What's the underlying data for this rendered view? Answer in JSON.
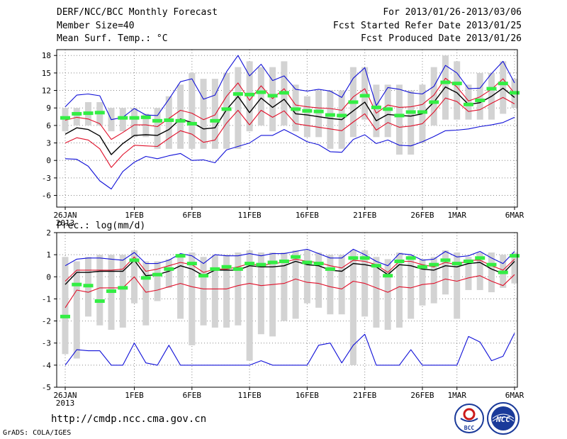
{
  "header": {
    "title": "DERF/NCC/BCC Monthly Forecast",
    "member_size": "Member Size=40",
    "variable_top": "Mean Surf. Temp.: °C",
    "forecast_period": "For 2013/01/26-2013/03/06",
    "refer_date": "Fcst Started Refer Date 2013/01/25",
    "produced_date": "Fcst Produced Date 2013/01/26"
  },
  "footer": {
    "url": "http://cmdp.ncc.cma.gov.cn",
    "credit": "GrADS: COLA/IGES",
    "logo_left_text": "BCC",
    "logo_right_text": "NCC"
  },
  "colors": {
    "bar": "#d3d3d3",
    "mean": "#000000",
    "spread": "#e0102a",
    "extreme": "#1010d8",
    "observed": "#33ee44",
    "grid": "#888888"
  },
  "chart_data": [
    {
      "type": "line",
      "title": "Mean Surf. Temp.: °C",
      "ylabel": "°C",
      "ylim": [
        -8,
        19
      ],
      "yticks": [
        -6,
        -3,
        0,
        3,
        6,
        9,
        12,
        15,
        18
      ],
      "ytick_labels": [
        "-6",
        "-3",
        "0",
        "3",
        "6",
        "9",
        "12",
        "15",
        "18"
      ],
      "xticks": [
        {
          "day": 0,
          "label": "26JAN",
          "sub": "2013"
        },
        {
          "day": 6,
          "label": "1FEB"
        },
        {
          "day": 11,
          "label": "6FEB"
        },
        {
          "day": 16,
          "label": "11FEB"
        },
        {
          "day": 21,
          "label": "16FEB"
        },
        {
          "day": 26,
          "label": "21FEB"
        },
        {
          "day": 31,
          "label": "26FEB"
        },
        {
          "day": 34,
          "label": "1MAR"
        },
        {
          "day": 39,
          "label": "6MAR"
        }
      ],
      "series": [
        {
          "name": "ensemble range",
          "kind": "bars",
          "low": [
            5,
            6,
            6,
            6,
            5,
            5,
            4,
            4,
            2,
            2,
            2,
            2,
            2,
            2,
            2,
            2,
            5,
            6,
            5,
            6,
            5,
            4,
            4,
            2,
            2,
            4,
            7,
            4,
            4,
            1,
            1,
            3,
            6,
            7,
            7,
            7,
            7,
            7,
            8,
            9
          ],
          "high": [
            9,
            9,
            10,
            10,
            9,
            9,
            9,
            8,
            9,
            11,
            13,
            15,
            14,
            14,
            15,
            16,
            17,
            16,
            16,
            17,
            13,
            11,
            12,
            12,
            12,
            16,
            16,
            13,
            13,
            13,
            12,
            13,
            16,
            18,
            17,
            13,
            15,
            15,
            17,
            14
          ]
        },
        {
          "name": "maximum",
          "kind": "line",
          "color": "extreme",
          "values": [
            9.2,
            11.2,
            11.4,
            11.1,
            7.0,
            7.4,
            8.9,
            7.8,
            7.7,
            10.5,
            13.5,
            14.0,
            10.5,
            11.2,
            15.2,
            18.0,
            14.5,
            16.5,
            13.7,
            14.5,
            12.2,
            11.9,
            12.2,
            11.9,
            10.8,
            14.1,
            15.9,
            9.4,
            12.5,
            12.2,
            11.6,
            11.4,
            12.7,
            16.3,
            15.0,
            12.3,
            12.4,
            14.9,
            17.0,
            13.3
          ]
        },
        {
          "name": "upper spread",
          "kind": "line",
          "color": "spread",
          "values": [
            6.9,
            7.4,
            7.1,
            6.3,
            3.6,
            4.8,
            6.1,
            6.1,
            5.8,
            7.2,
            8.6,
            8.1,
            7.0,
            7.8,
            11.0,
            13.3,
            10.3,
            12.8,
            10.6,
            12.3,
            9.5,
            9.2,
            9.0,
            8.9,
            8.6,
            10.9,
            12.3,
            8.1,
            9.5,
            9.1,
            9.2,
            9.6,
            11.2,
            14.1,
            12.6,
            10.2,
            10.9,
            12.2,
            14.0,
            11.5
          ]
        },
        {
          "name": "ensemble mean",
          "kind": "line",
          "color": "mean",
          "values": [
            4.5,
            5.6,
            5.3,
            4.2,
            1.0,
            2.9,
            4.3,
            4.4,
            4.3,
            5.3,
            7.1,
            6.5,
            5.4,
            5.6,
            8.7,
            11.0,
            8.2,
            10.7,
            9.1,
            10.5,
            8.0,
            7.8,
            7.5,
            7.2,
            7.0,
            8.5,
            10.0,
            6.8,
            7.9,
            7.7,
            7.6,
            8.0,
            10.0,
            12.6,
            11.6,
            9.6,
            9.9,
            11.0,
            12.4,
            10.8
          ]
        },
        {
          "name": "lower spread",
          "kind": "line",
          "color": "spread",
          "values": [
            3.0,
            3.9,
            3.5,
            2.0,
            -1.2,
            1.0,
            2.6,
            2.5,
            2.4,
            3.8,
            5.1,
            4.5,
            3.1,
            3.5,
            6.4,
            8.6,
            6.1,
            8.6,
            7.4,
            8.5,
            6.3,
            6.0,
            5.7,
            5.4,
            5.1,
            6.6,
            8.0,
            5.2,
            6.5,
            5.7,
            5.9,
            6.3,
            8.3,
            10.7,
            10.1,
            8.4,
            8.7,
            9.8,
            10.8,
            9.7
          ]
        },
        {
          "name": "minimum",
          "kind": "line",
          "color": "extreme",
          "values": [
            0.3,
            0.2,
            -1.0,
            -3.5,
            -4.9,
            -1.9,
            -0.3,
            0.7,
            0.3,
            0.8,
            1.2,
            0.0,
            0.1,
            -0.4,
            1.8,
            2.4,
            3.0,
            4.3,
            4.3,
            5.3,
            4.3,
            3.2,
            2.7,
            1.5,
            1.4,
            3.6,
            4.4,
            2.9,
            3.5,
            2.6,
            2.5,
            3.2,
            4.1,
            5.1,
            5.2,
            5.4,
            5.8,
            6.1,
            6.5,
            7.4
          ]
        },
        {
          "name": "observed",
          "kind": "marks",
          "color": "observed",
          "values": [
            7.3,
            8.0,
            8.1,
            8.2,
            null,
            7.3,
            7.3,
            7.4,
            6.8,
            6.9,
            6.8,
            6.3,
            null,
            6.8,
            8.8,
            11.4,
            11.3,
            11.7,
            11.1,
            11.6,
            8.8,
            8.5,
            8.4,
            7.8,
            7.7,
            10.0,
            11.1,
            9.1,
            8.8,
            7.7,
            8.3,
            8.3,
            10.0,
            13.4,
            13.2,
            9.6,
            10.3,
            12.3,
            13.2,
            11.6
          ]
        }
      ]
    },
    {
      "type": "line",
      "title": "Prec.: log(mm/d)",
      "ylabel": "log(mm/d)",
      "ylim": [
        -5,
        2
      ],
      "yticks": [
        -5,
        -4,
        -3,
        -2,
        -1,
        0,
        1,
        2
      ],
      "ytick_labels": [
        "-5",
        "-4",
        "-3",
        "-2",
        "-1",
        "0",
        "1",
        "2"
      ],
      "xticks": [
        {
          "day": 0,
          "label": "26JAN",
          "sub": "2013"
        },
        {
          "day": 6,
          "label": "1FEB"
        },
        {
          "day": 11,
          "label": "6FEB"
        },
        {
          "day": 16,
          "label": "11FEB"
        },
        {
          "day": 21,
          "label": "16FEB"
        },
        {
          "day": 26,
          "label": "21FEB"
        },
        {
          "day": 31,
          "label": "26FEB"
        },
        {
          "day": 34,
          "label": "1MAR"
        },
        {
          "day": 39,
          "label": "6MAR"
        }
      ],
      "series": [
        {
          "name": "ensemble range",
          "kind": "bars",
          "low": [
            -3.5,
            -3.7,
            -1.8,
            -2.2,
            -2.4,
            -2.3,
            -1.2,
            -2.2,
            -1.1,
            -0.5,
            -1.9,
            -3.1,
            -2.2,
            -2.3,
            -2.3,
            -2.2,
            -3.8,
            -2.6,
            -2.7,
            -2.0,
            -1.9,
            -1.2,
            -1.4,
            -1.7,
            -1.7,
            -4.0,
            -1.8,
            -2.3,
            -2.4,
            -2.3,
            -1.9,
            -1.3,
            -1.2,
            -0.8,
            -1.9,
            -0.6,
            -0.6,
            -0.7,
            -0.5,
            -0.3
          ],
          "high": [
            0.9,
            0.7,
            0.9,
            1.0,
            1.0,
            1.0,
            1.2,
            0.7,
            0.7,
            0.8,
            1.0,
            1.1,
            0.9,
            1.0,
            1.0,
            1.1,
            1.2,
            1.1,
            1.1,
            1.1,
            1.2,
            1.2,
            1.1,
            1.0,
            1.0,
            1.2,
            1.2,
            0.9,
            0.8,
            1.1,
            1.0,
            0.8,
            0.9,
            1.2,
            1.1,
            0.9,
            1.1,
            1.1,
            1.0,
            1.1
          ]
        },
        {
          "name": "maximum",
          "kind": "line",
          "color": "extreme",
          "values": [
            0.5,
            0.8,
            0.85,
            0.85,
            0.8,
            0.75,
            1.1,
            0.6,
            0.6,
            0.75,
            1.05,
            0.95,
            0.6,
            1.0,
            0.95,
            0.95,
            1.05,
            0.95,
            1.05,
            1.05,
            1.15,
            1.25,
            1.05,
            0.85,
            0.85,
            1.25,
            1.0,
            0.7,
            0.5,
            1.05,
            1.0,
            0.75,
            0.8,
            1.15,
            0.9,
            0.95,
            1.15,
            0.85,
            0.6,
            1.15
          ]
        },
        {
          "name": "upper spread",
          "kind": "line",
          "color": "spread",
          "values": [
            -0.2,
            0.3,
            0.3,
            0.3,
            0.3,
            0.35,
            0.9,
            0.25,
            0.35,
            0.5,
            0.65,
            0.55,
            0.2,
            0.35,
            0.35,
            0.45,
            0.6,
            0.5,
            0.6,
            0.65,
            0.8,
            0.7,
            0.65,
            0.5,
            0.4,
            0.75,
            0.7,
            0.55,
            0.2,
            0.7,
            0.7,
            0.55,
            0.45,
            0.65,
            0.55,
            0.75,
            0.75,
            0.5,
            0.3,
            0.8
          ]
        },
        {
          "name": "ensemble mean",
          "kind": "line",
          "color": "mean",
          "values": [
            -0.35,
            0.2,
            0.2,
            0.25,
            0.25,
            0.25,
            0.75,
            0.05,
            0.1,
            0.25,
            0.5,
            0.35,
            0.05,
            0.3,
            0.3,
            0.3,
            0.5,
            0.45,
            0.45,
            0.5,
            0.7,
            0.55,
            0.5,
            0.3,
            0.25,
            0.6,
            0.55,
            0.45,
            0.1,
            0.55,
            0.5,
            0.35,
            0.3,
            0.5,
            0.45,
            0.6,
            0.65,
            0.35,
            0.15,
            0.7
          ]
        },
        {
          "name": "lower spread",
          "kind": "line",
          "color": "spread",
          "values": [
            -1.4,
            -0.6,
            -0.7,
            -0.5,
            -0.5,
            -0.5,
            0.0,
            -0.7,
            -0.6,
            -0.45,
            -0.3,
            -0.45,
            -0.55,
            -0.55,
            -0.55,
            -0.4,
            -0.3,
            -0.4,
            -0.35,
            -0.3,
            -0.1,
            -0.25,
            -0.3,
            -0.45,
            -0.55,
            -0.2,
            -0.3,
            -0.5,
            -0.7,
            -0.45,
            -0.5,
            -0.35,
            -0.3,
            -0.1,
            -0.2,
            -0.05,
            0.05,
            -0.2,
            -0.4,
            0.1
          ]
        },
        {
          "name": "minimum",
          "kind": "line",
          "color": "extreme",
          "values": [
            -4.0,
            -3.3,
            -3.35,
            -3.35,
            -4.0,
            -4.0,
            -3.0,
            -3.9,
            -4.0,
            -3.1,
            -4.0,
            -4.0,
            -4.0,
            -4.0,
            -4.0,
            -4.0,
            -4.0,
            -3.8,
            -4.0,
            -4.0,
            -4.0,
            -4.0,
            -3.1,
            -3.0,
            -3.9,
            -3.1,
            -2.6,
            -4.0,
            -4.0,
            -4.0,
            -3.3,
            -4.0,
            -4.0,
            -4.0,
            -4.0,
            -2.7,
            -2.95,
            -3.8,
            -3.6,
            -2.55
          ]
        },
        {
          "name": "observed",
          "kind": "marks",
          "color": "observed",
          "values": [
            -1.8,
            -0.35,
            -0.4,
            -1.1,
            -0.65,
            -0.5,
            0.75,
            -0.05,
            0.1,
            0.35,
            0.95,
            0.6,
            0.05,
            0.35,
            0.45,
            0.35,
            0.6,
            0.55,
            0.65,
            0.7,
            0.9,
            0.65,
            0.6,
            0.35,
            null,
            0.85,
            0.85,
            0.5,
            0.05,
            0.7,
            0.85,
            0.45,
            0.55,
            0.75,
            0.6,
            0.7,
            0.85,
            0.55,
            0.2,
            0.95
          ]
        }
      ]
    }
  ]
}
